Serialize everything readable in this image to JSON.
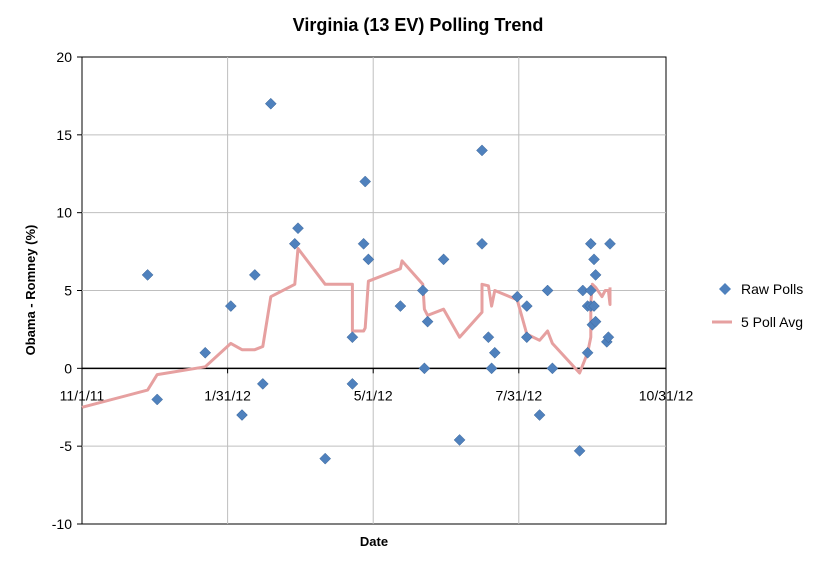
{
  "chart_data": {
    "type": "scatter",
    "title": "Virginia (13 EV) Polling Trend",
    "xlabel": "Date",
    "ylabel": "Obama - Romney (%)",
    "xlim": [
      "2011-11-01",
      "2012-10-31"
    ],
    "ylim": [
      -10,
      20
    ],
    "x_ticks": [
      "11/1/11",
      "1/31/12",
      "5/1/12",
      "7/31/12",
      "10/31/12"
    ],
    "x_tick_dates": [
      "2011-11-01",
      "2012-01-31",
      "2012-05-01",
      "2012-07-31",
      "2012-10-31"
    ],
    "y_ticks": [
      -10,
      -5,
      0,
      5,
      10,
      15,
      20
    ],
    "grid": true,
    "legend_position": "right",
    "colors": {
      "raw": "#4f81bd",
      "avg": "#e6a0a0",
      "axis": "#000000",
      "grid": "#bfbfbf"
    },
    "series": [
      {
        "name": "Raw Polls",
        "kind": "scatter",
        "points": [
          [
            "2011-12-12",
            6
          ],
          [
            "2011-12-18",
            -2
          ],
          [
            "2012-01-17",
            1
          ],
          [
            "2012-02-02",
            4
          ],
          [
            "2012-02-09",
            -3
          ],
          [
            "2012-02-17",
            6
          ],
          [
            "2012-02-22",
            -1
          ],
          [
            "2012-02-27",
            17
          ],
          [
            "2012-03-13",
            8
          ],
          [
            "2012-03-15",
            9
          ],
          [
            "2012-04-01",
            -5.8
          ],
          [
            "2012-04-18",
            2
          ],
          [
            "2012-04-18",
            -1
          ],
          [
            "2012-04-25",
            8
          ],
          [
            "2012-04-26",
            12
          ],
          [
            "2012-04-28",
            7
          ],
          [
            "2012-05-18",
            4
          ],
          [
            "2012-06-01",
            5
          ],
          [
            "2012-06-02",
            0
          ],
          [
            "2012-06-04",
            3
          ],
          [
            "2012-06-14",
            7
          ],
          [
            "2012-06-24",
            -4.6
          ],
          [
            "2012-07-08",
            14
          ],
          [
            "2012-07-08",
            8
          ],
          [
            "2012-07-12",
            2
          ],
          [
            "2012-07-14",
            0
          ],
          [
            "2012-07-16",
            1
          ],
          [
            "2012-07-30",
            4.6
          ],
          [
            "2012-08-05",
            2
          ],
          [
            "2012-08-05",
            4
          ],
          [
            "2012-08-13",
            -3
          ],
          [
            "2012-08-18",
            5
          ],
          [
            "2012-08-21",
            0
          ],
          [
            "2012-09-07",
            -5.3
          ],
          [
            "2012-09-09",
            5
          ],
          [
            "2012-09-12",
            1
          ],
          [
            "2012-09-12",
            4
          ],
          [
            "2012-09-14",
            8
          ],
          [
            "2012-09-14",
            5
          ],
          [
            "2012-09-14",
            4
          ],
          [
            "2012-09-15",
            2.8
          ],
          [
            "2012-09-16",
            4
          ],
          [
            "2012-09-16",
            7
          ],
          [
            "2012-09-17",
            6
          ],
          [
            "2012-09-17",
            3
          ],
          [
            "2012-09-24",
            1.7
          ],
          [
            "2012-09-25",
            2
          ],
          [
            "2012-09-26",
            8
          ]
        ]
      },
      {
        "name": "5 Poll Avg",
        "kind": "line",
        "points": [
          [
            "2011-11-01",
            -2.5
          ],
          [
            "2011-12-12",
            -1.4
          ],
          [
            "2011-12-18",
            -0.4
          ],
          [
            "2012-01-17",
            0.1
          ],
          [
            "2012-02-02",
            1.6
          ],
          [
            "2012-02-09",
            1.2
          ],
          [
            "2012-02-17",
            1.2
          ],
          [
            "2012-02-22",
            1.4
          ],
          [
            "2012-02-27",
            4.6
          ],
          [
            "2012-03-13",
            5.4
          ],
          [
            "2012-03-15",
            7.7
          ],
          [
            "2012-04-01",
            5.4
          ],
          [
            "2012-04-18",
            5.4
          ],
          [
            "2012-04-18",
            2.4
          ],
          [
            "2012-04-25",
            2.4
          ],
          [
            "2012-04-26",
            2.6
          ],
          [
            "2012-04-28",
            5.6
          ],
          [
            "2012-05-18",
            6.4
          ],
          [
            "2012-05-19",
            6.9
          ],
          [
            "2012-06-01",
            5.4
          ],
          [
            "2012-06-02",
            3.8
          ],
          [
            "2012-06-04",
            3.4
          ],
          [
            "2012-06-14",
            3.8
          ],
          [
            "2012-06-24",
            2.0
          ],
          [
            "2012-07-08",
            3.6
          ],
          [
            "2012-07-08",
            5.4
          ],
          [
            "2012-07-12",
            5.3
          ],
          [
            "2012-07-14",
            4.0
          ],
          [
            "2012-07-16",
            5.0
          ],
          [
            "2012-07-30",
            4.4
          ],
          [
            "2012-08-05",
            2.2
          ],
          [
            "2012-08-13",
            1.8
          ],
          [
            "2012-08-18",
            2.4
          ],
          [
            "2012-08-21",
            1.6
          ],
          [
            "2012-09-07",
            -0.3
          ],
          [
            "2012-09-12",
            1.0
          ],
          [
            "2012-09-14",
            2.0
          ],
          [
            "2012-09-14",
            4.2
          ],
          [
            "2012-09-15",
            5.4
          ],
          [
            "2012-09-17",
            5.2
          ],
          [
            "2012-09-21",
            4.6
          ],
          [
            "2012-09-23",
            5.0
          ],
          [
            "2012-09-25",
            5.0
          ],
          [
            "2012-09-26",
            4.1
          ],
          [
            "2012-09-26",
            5.2
          ]
        ]
      }
    ]
  }
}
